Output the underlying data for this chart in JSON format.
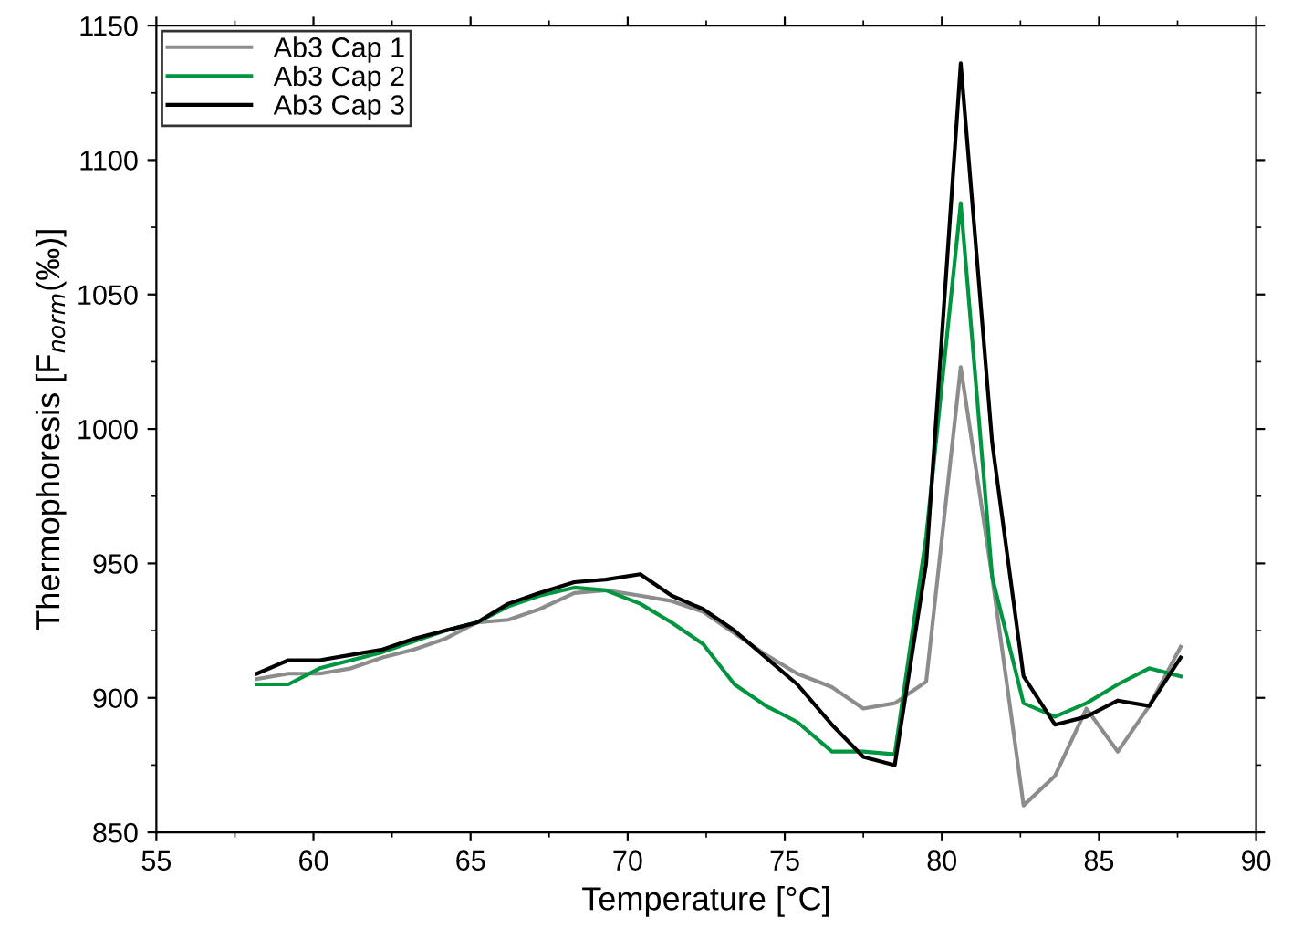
{
  "chart_data": {
    "type": "line",
    "xlabel": "Temperature [°C]",
    "ylabel": "Thermophoresis [F$_{norm}$(‰)]",
    "x": [
      58.2,
      59.2,
      60.2,
      61.2,
      62.2,
      63.2,
      64.2,
      65.2,
      66.2,
      67.2,
      68.3,
      69.3,
      70.4,
      71.4,
      72.4,
      73.4,
      74.4,
      75.4,
      76.5,
      77.5,
      78.5,
      79.5,
      80.6,
      81.6,
      82.6,
      83.6,
      84.6,
      85.6,
      86.6,
      87.6
    ],
    "series": [
      {
        "name": "Ab3 Cap 1",
        "color": "#8c8c8c",
        "values": [
          907,
          909,
          909,
          911,
          915,
          918,
          922,
          928,
          929,
          933,
          939,
          940,
          938,
          936,
          932,
          924,
          916,
          909,
          904,
          896,
          898,
          906,
          1023,
          945,
          860,
          871,
          896,
          880,
          897,
          919
        ]
      },
      {
        "name": "Ab3 Cap 2",
        "color": "#009640",
        "values": [
          905,
          905,
          911,
          914,
          917,
          921,
          925,
          928,
          934,
          938,
          941,
          940,
          935,
          928,
          920,
          905,
          897,
          891,
          880,
          880,
          879,
          960,
          1084,
          945,
          898,
          893,
          898,
          905,
          911,
          908
        ]
      },
      {
        "name": "Ab3 Cap 3",
        "color": "#000000",
        "values": [
          909,
          914,
          914,
          916,
          918,
          922,
          925,
          928,
          935,
          939,
          943,
          944,
          946,
          938,
          933,
          925,
          915,
          905,
          890,
          878,
          875,
          950,
          1136,
          995,
          908,
          890,
          893,
          899,
          897,
          915
        ]
      }
    ],
    "xlim": [
      55,
      90
    ],
    "ylim": [
      850,
      1150
    ],
    "xticks": [
      55,
      60,
      65,
      70,
      75,
      80,
      85,
      90
    ],
    "yticks": [
      850,
      900,
      950,
      1000,
      1050,
      1100,
      1150
    ],
    "grid": false,
    "legend": "top left",
    "marker": "none",
    "line_style": "solid"
  }
}
